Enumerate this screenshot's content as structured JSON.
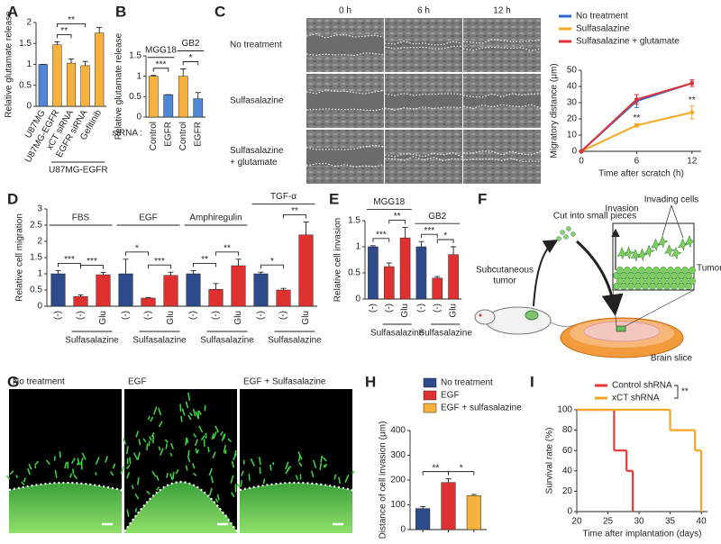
{
  "figure": {
    "panel_c": {
      "label": "C",
      "columns": [
        "0 h",
        "6 h",
        "12 h"
      ],
      "rows": [
        [
          "No treatment"
        ],
        [
          "Sulfasalazine"
        ],
        [
          "Sulfasalazine",
          "+ glutamate"
        ]
      ]
    },
    "panel_f": {
      "label": "F",
      "subcutaneous_tumor": [
        "Subcutaneous",
        "tumor"
      ],
      "cut": "Cut into small pieces",
      "invasion": "Invasion",
      "invading_cells": "Invading cells",
      "tumor": "Tumor",
      "brain_slice": "Brain slice"
    },
    "panel_g": {
      "label": "G",
      "columns": [
        "No treatment",
        "EGF",
        "EGF + Sulfasalazine"
      ]
    }
  },
  "chart_data": [
    {
      "type": "bar",
      "label": "A",
      "ylabel": "Relative glutamate release",
      "categories": [
        "U87MG",
        "U87MG-EGFR",
        "xCT siRNA",
        "EGFR siRNA",
        "Gefitinib"
      ],
      "values": [
        1,
        1.47,
        1.03,
        0.97,
        1.75
      ],
      "errors": [
        0,
        0.07,
        0.1,
        0.1,
        0.13
      ],
      "colors": [
        "#4f86d6",
        "#f6b23c",
        "#f6b23c",
        "#f6b23c",
        "#f6b23c"
      ],
      "ylim": [
        0,
        2
      ],
      "yticks": [
        0,
        0.5,
        1,
        1.5,
        2
      ],
      "groups": [
        {
          "name": "U87MG-EGFR",
          "span": [
            1,
            4
          ]
        }
      ],
      "groups_at": "bottom",
      "annotations": [
        {
          "text": "**",
          "span": [
            1,
            2
          ]
        },
        {
          "text": "**",
          "span": [
            1,
            3
          ]
        }
      ]
    },
    {
      "type": "bar",
      "label": "B",
      "ylabel": "Relative glutamate release",
      "categories": [
        "Control",
        "EGFR",
        "Control",
        "EGFR"
      ],
      "category_title": "siRNA :",
      "values": [
        1,
        0.55,
        1,
        0.45
      ],
      "errors": [
        0.02,
        0,
        0.18,
        0.15
      ],
      "colors": [
        "#f6b23c",
        "#4f86d6",
        "#f6b23c",
        "#4f86d6"
      ],
      "ylim": [
        0,
        1.5
      ],
      "yticks": [
        0,
        0.5,
        1,
        1.5
      ],
      "groups": [
        {
          "name": "MGG18",
          "span": [
            0,
            1
          ]
        },
        {
          "name": "GB2",
          "span": [
            2,
            3
          ]
        }
      ],
      "groups_at": "top",
      "annotations": [
        {
          "text": "***",
          "span": [
            0,
            1
          ]
        },
        {
          "text": "*",
          "span": [
            2,
            3
          ]
        }
      ]
    },
    {
      "type": "line",
      "ylabel": "Migratory distance (μm)",
      "xlabel": "Time after scratch (h)",
      "x": [
        0,
        6,
        12
      ],
      "xlim": [
        0,
        13
      ],
      "xticks": [
        0,
        6,
        12
      ],
      "ylim": [
        0,
        50
      ],
      "yticks": [
        0,
        10,
        20,
        30,
        40,
        50
      ],
      "series": [
        {
          "name": "No treatment",
          "color": "#2f66c8",
          "values": [
            0,
            31,
            42
          ],
          "errors": [
            0,
            4,
            2
          ]
        },
        {
          "name": "Sulfasalazine",
          "color": "#f5a623",
          "values": [
            0,
            16,
            24
          ],
          "errors": [
            0,
            1,
            4
          ]
        },
        {
          "name": "Sulfasalazine + glutamate",
          "color": "#e0333a",
          "values": [
            0,
            32,
            42
          ],
          "errors": [
            0,
            3,
            2
          ]
        }
      ],
      "annotations": [
        {
          "text": "**",
          "series": 1,
          "index": 1
        },
        {
          "text": "**",
          "series": 1,
          "index": 2
        }
      ]
    },
    {
      "type": "bar",
      "label": "D",
      "ylabel": "Relative cell migration",
      "categories": [
        "(-)",
        "(-)",
        "Glu",
        "(-)",
        "(-)",
        "Glu",
        "(-)",
        "(-)",
        "Glu",
        "(-)",
        "(-)",
        "Glu"
      ],
      "values": [
        1,
        0.3,
        0.97,
        1,
        0.25,
        0.95,
        1,
        0.52,
        1.25,
        1,
        0.5,
        2.2
      ],
      "errors": [
        0.1,
        0.05,
        0.07,
        0.45,
        0.02,
        0.1,
        0.1,
        0.18,
        0.2,
        0.05,
        0.05,
        0.4
      ],
      "colors": [
        "#2d4a8a",
        "#e03131",
        "#e03131",
        "#2d4a8a",
        "#e03131",
        "#e03131",
        "#2d4a8a",
        "#e03131",
        "#e03131",
        "#2d4a8a",
        "#e03131",
        "#e03131"
      ],
      "ylim": [
        0,
        3
      ],
      "yticks": [
        0,
        0.5,
        1,
        1.5,
        2,
        2.5,
        3
      ],
      "groups": [
        {
          "name": "FBS",
          "span": [
            0,
            2
          ]
        },
        {
          "name": "EGF",
          "span": [
            3,
            5
          ]
        },
        {
          "name": "Amphiregulin",
          "span": [
            6,
            8
          ]
        },
        {
          "name": "TGF-α",
          "span": [
            9,
            11
          ]
        }
      ],
      "groups_at": "top",
      "subgroups": [
        {
          "name": "Sulfasalazine",
          "span": [
            1,
            2
          ]
        },
        {
          "name": "Sulfasalazine",
          "span": [
            4,
            5
          ]
        },
        {
          "name": "Sulfasalazine",
          "span": [
            7,
            8
          ]
        },
        {
          "name": "Sulfasalazine",
          "span": [
            10,
            11
          ]
        }
      ],
      "annotations": [
        {
          "text": "***",
          "span": [
            0,
            1
          ]
        },
        {
          "text": "***",
          "span": [
            1,
            2
          ]
        },
        {
          "text": "*",
          "span": [
            3,
            4
          ]
        },
        {
          "text": "***",
          "span": [
            4,
            5
          ]
        },
        {
          "text": "**",
          "span": [
            6,
            7
          ]
        },
        {
          "text": "**",
          "span": [
            7,
            8
          ]
        },
        {
          "text": "*",
          "span": [
            9,
            10
          ]
        },
        {
          "text": "**",
          "span": [
            10,
            11
          ]
        }
      ]
    },
    {
      "type": "bar",
      "label": "E",
      "ylabel": "Relative cell invasion",
      "categories": [
        "(-)",
        "(-)",
        "Glu",
        "(-)",
        "(-)",
        "Glu"
      ],
      "values": [
        1,
        0.62,
        1.17,
        1,
        0.4,
        0.85
      ],
      "errors": [
        0.02,
        0.07,
        0.2,
        0.1,
        0.03,
        0.15
      ],
      "colors": [
        "#2d4a8a",
        "#e03131",
        "#e03131",
        "#2d4a8a",
        "#e03131",
        "#e03131"
      ],
      "ylim": [
        0,
        1.5
      ],
      "yticks": [
        0,
        0.5,
        1,
        1.5
      ],
      "groups": [
        {
          "name": "MGG18",
          "span": [
            0,
            2
          ]
        },
        {
          "name": "GB2",
          "span": [
            3,
            5
          ]
        }
      ],
      "groups_at": "top",
      "subgroups": [
        {
          "name": "Sulfasalazine",
          "span": [
            1,
            2
          ]
        },
        {
          "name": "Sulfasalazine",
          "span": [
            4,
            5
          ]
        }
      ],
      "annotations": [
        {
          "text": "***",
          "span": [
            0,
            1
          ]
        },
        {
          "text": "**",
          "span": [
            1,
            2
          ]
        },
        {
          "text": "***",
          "span": [
            3,
            4
          ]
        },
        {
          "text": "*",
          "span": [
            4,
            5
          ]
        }
      ]
    },
    {
      "type": "bar",
      "label": "H",
      "ylabel": "Distance of cell invasion (μm)",
      "categories": [
        null,
        null,
        null
      ],
      "values": [
        85,
        190,
        137
      ],
      "errors": [
        8,
        15,
        5
      ],
      "colors": [
        "#2d4a8a",
        "#e03131",
        "#f6b23c"
      ],
      "legend": [
        "No treatment",
        "EGF",
        "EGF + sulfasalazine"
      ],
      "ylim": [
        0,
        400
      ],
      "yticks": [
        0,
        100,
        200,
        300,
        400
      ],
      "annotations": [
        {
          "text": "**",
          "span": [
            0,
            1
          ]
        },
        {
          "text": "*",
          "span": [
            1,
            2
          ]
        }
      ]
    },
    {
      "type": "step",
      "label": "I",
      "ylabel": "Survival rate (%)",
      "xlabel": "Time after implantation (days)",
      "xlim": [
        20,
        41
      ],
      "xticks": [
        20,
        25,
        30,
        35,
        40
      ],
      "ylim": [
        0,
        100
      ],
      "yticks": [
        0,
        20,
        40,
        60,
        80,
        100
      ],
      "series": [
        {
          "name": "Control shRNA",
          "color": "#e53935",
          "x": [
            20,
            26,
            28,
            29
          ],
          "values": [
            100,
            60,
            40,
            0
          ]
        },
        {
          "name": "xCT shRNA",
          "color": "#f5a623",
          "x": [
            20,
            35,
            39,
            40
          ],
          "values": [
            100,
            80,
            60,
            0
          ]
        }
      ],
      "legend_annotation": "**"
    }
  ]
}
